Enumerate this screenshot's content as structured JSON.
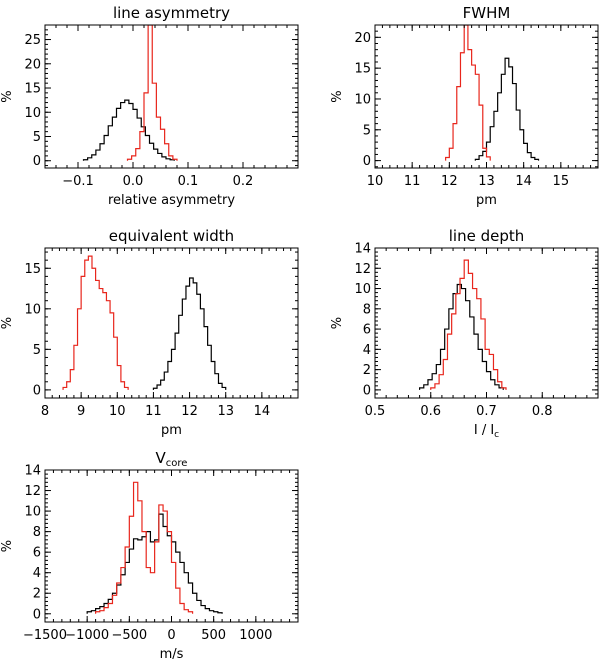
{
  "colors": {
    "black_series": "#000000",
    "red_series": "#e8261c",
    "axes": "#000000"
  },
  "chart_data": [
    {
      "type": "histogram",
      "title": "line asymmetry",
      "xlabel": "relative asymmetry",
      "ylabel": "%",
      "xlim": [
        -0.16,
        0.3
      ],
      "ylim": [
        -1.5,
        28
      ],
      "xticks": [
        -0.1,
        0.0,
        0.1,
        0.2
      ],
      "xtick_labels": [
        "−0.1",
        "0.0",
        "0.1",
        "0.2"
      ],
      "yticks": [
        0,
        5,
        10,
        15,
        20,
        25
      ],
      "ytick_labels": [
        "0",
        "5",
        "10",
        "15",
        "20",
        "25"
      ],
      "bin_width": 0.0075,
      "series": [
        {
          "name": "black",
          "color": "black",
          "x0": -0.09,
          "values": [
            0.2,
            0.6,
            1.2,
            2.2,
            3.5,
            5.2,
            7.2,
            9.0,
            10.8,
            12.0,
            12.5,
            11.8,
            10.6,
            8.8,
            7.0,
            5.2,
            3.6,
            2.4,
            1.5,
            0.8,
            0.4,
            0.2
          ]
        },
        {
          "name": "red",
          "color": "red",
          "x0": -0.01,
          "values": [
            0.3,
            1.0,
            2.5,
            6.0,
            14.0,
            28.0,
            16.0,
            9.0,
            6.5,
            3.5,
            1.0,
            0.3
          ]
        }
      ]
    },
    {
      "type": "histogram",
      "title": "FWHM",
      "xlabel": "pm",
      "ylabel": "%",
      "xlim": [
        10,
        16
      ],
      "ylim": [
        -1.2,
        22
      ],
      "xticks": [
        10,
        11,
        12,
        13,
        14,
        15
      ],
      "xtick_labels": [
        "10",
        "11",
        "12",
        "13",
        "14",
        "15"
      ],
      "yticks": [
        0,
        5,
        10,
        15,
        20
      ],
      "ytick_labels": [
        "0",
        "5",
        "10",
        "15",
        "20"
      ],
      "bin_width": 0.1,
      "series": [
        {
          "name": "black",
          "color": "black",
          "x0": 12.7,
          "values": [
            0.2,
            0.8,
            1.5,
            3.0,
            5.5,
            8.0,
            11.0,
            14.0,
            16.6,
            15.2,
            12.5,
            8.2,
            5.0,
            2.8,
            1.3,
            0.5,
            0.2
          ]
        },
        {
          "name": "red",
          "color": "red",
          "x0": 11.9,
          "values": [
            0.5,
            2.0,
            6.0,
            12.0,
            17.5,
            22.0,
            18.0,
            15.5,
            14.0,
            9.0,
            2.0,
            0.6
          ]
        }
      ]
    },
    {
      "type": "histogram",
      "title": "equivalent width",
      "xlabel": "pm",
      "ylabel": "%",
      "xlim": [
        8,
        15
      ],
      "ylim": [
        -1,
        17.5
      ],
      "xticks": [
        8,
        9,
        10,
        11,
        12,
        13,
        14
      ],
      "xtick_labels": [
        "8",
        "9",
        "10",
        "11",
        "12",
        "13",
        "14"
      ],
      "yticks": [
        0,
        5,
        10,
        15
      ],
      "ytick_labels": [
        "0",
        "5",
        "10",
        "15"
      ],
      "bin_width": 0.1,
      "series": [
        {
          "name": "black",
          "color": "black",
          "x0": 11.0,
          "values": [
            0.2,
            0.6,
            1.2,
            2.2,
            3.5,
            5.0,
            7.0,
            9.2,
            11.2,
            12.8,
            13.8,
            13.2,
            11.8,
            10.0,
            7.8,
            5.5,
            3.5,
            2.0,
            0.8,
            0.3
          ]
        },
        {
          "name": "red",
          "color": "red",
          "x0": 8.5,
          "values": [
            0.3,
            1.0,
            2.5,
            5.5,
            10.0,
            14.0,
            16.0,
            16.5,
            15.0,
            13.5,
            12.5,
            12.0,
            11.0,
            9.5,
            6.5,
            3.0,
            1.0,
            0.3
          ]
        }
      ]
    },
    {
      "type": "histogram",
      "title": "line depth",
      "xlabel": "I / Ic",
      "xlabel_main": "I / I",
      "xlabel_sub": "c",
      "ylabel": "%",
      "xlim": [
        0.5,
        0.9
      ],
      "ylim": [
        -0.8,
        14
      ],
      "xticks": [
        0.5,
        0.6,
        0.7,
        0.8
      ],
      "xtick_labels": [
        "0.5",
        "0.6",
        "0.7",
        "0.8"
      ],
      "yticks": [
        0,
        2,
        4,
        6,
        8,
        10,
        12,
        14
      ],
      "ytick_labels": [
        "0",
        "2",
        "4",
        "6",
        "8",
        "10",
        "12",
        "14"
      ],
      "bin_width": 0.0075,
      "series": [
        {
          "name": "black",
          "color": "black",
          "x0": 0.58,
          "values": [
            0.2,
            0.5,
            1.0,
            1.6,
            2.5,
            4.0,
            6.0,
            8.0,
            9.5,
            10.4,
            10.0,
            8.8,
            7.2,
            5.5,
            4.0,
            2.8,
            1.8,
            1.0,
            0.5,
            0.2
          ]
        },
        {
          "name": "red",
          "color": "red",
          "x0": 0.6,
          "values": [
            0.2,
            0.6,
            1.5,
            3.0,
            5.5,
            7.5,
            9.5,
            11.0,
            12.8,
            11.5,
            10.0,
            9.0,
            7.0,
            4.0,
            3.5,
            2.0,
            0.8,
            0.2
          ]
        }
      ]
    },
    {
      "type": "histogram",
      "title": "V",
      "title_sub": "core",
      "xlabel": "m/s",
      "ylabel": "%",
      "xlim": [
        -1500,
        1500
      ],
      "ylim": [
        -0.8,
        14
      ],
      "xticks": [
        -1500,
        -1000,
        -500,
        0,
        500,
        1000
      ],
      "xtick_labels": [
        "−1500",
        "−1000",
        "−500",
        "0",
        "500",
        "1000"
      ],
      "yticks": [
        0,
        2,
        4,
        6,
        8,
        10,
        12,
        14
      ],
      "ytick_labels": [
        "0",
        "2",
        "4",
        "6",
        "8",
        "10",
        "12",
        "14"
      ],
      "bin_width": 50,
      "series": [
        {
          "name": "black",
          "color": "black",
          "x0": -1000,
          "values": [
            0.2,
            0.3,
            0.5,
            0.7,
            1.0,
            1.4,
            2.0,
            2.8,
            3.8,
            5.0,
            6.3,
            7.3,
            7.2,
            7.5,
            8.0,
            7.0,
            7.2,
            9.7,
            8.5,
            7.6,
            7.0,
            6.0,
            5.0,
            4.0,
            3.0,
            2.0,
            1.3,
            0.8,
            0.5,
            0.3,
            0.2,
            0.1
          ]
        },
        {
          "name": "red",
          "color": "red",
          "x0": -900,
          "values": [
            0.2,
            0.3,
            0.6,
            1.0,
            1.8,
            3.0,
            4.5,
            6.5,
            9.5,
            12.8,
            11.0,
            8.0,
            4.5,
            4.0,
            7.0,
            10.6,
            10.0,
            8.0,
            5.0,
            2.5,
            1.0,
            0.4,
            0.2
          ]
        }
      ]
    }
  ]
}
